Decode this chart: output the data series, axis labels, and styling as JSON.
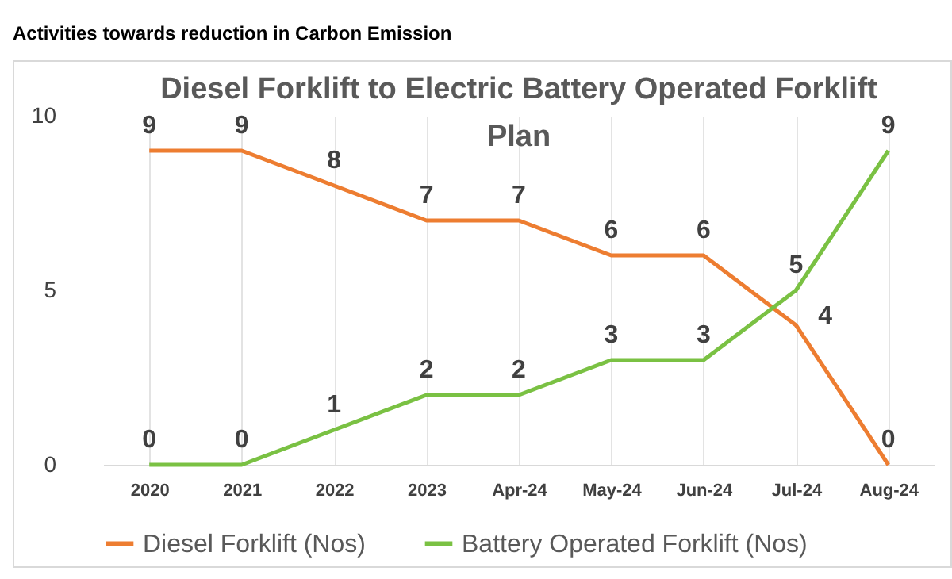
{
  "chart_data": {
    "type": "line",
    "title": "Activities towards reduction in Carbon Emission",
    "subtitle": "Diesel Forklift to Electric Battery Operated Forklift Plan",
    "categories": [
      "2020",
      "2021",
      "2022",
      "2023",
      "Apr-24",
      "May-24",
      "Jun-24",
      "Jul-24",
      "Aug-24"
    ],
    "series": [
      {
        "name": "Diesel Forklift (Nos)",
        "color": "#ed7d31",
        "values": [
          9,
          9,
          8,
          7,
          7,
          6,
          6,
          4,
          0
        ]
      },
      {
        "name": "Battery Operated Forklift (Nos)",
        "color": "#7ac143",
        "values": [
          0,
          0,
          1,
          2,
          2,
          3,
          3,
          5,
          9
        ]
      }
    ],
    "ylim": [
      0,
      10
    ],
    "yticks": [
      0,
      5,
      10
    ],
    "grid": "x",
    "legend": "bottom",
    "data_labels": true,
    "marker": "none",
    "line_style": "solid"
  }
}
